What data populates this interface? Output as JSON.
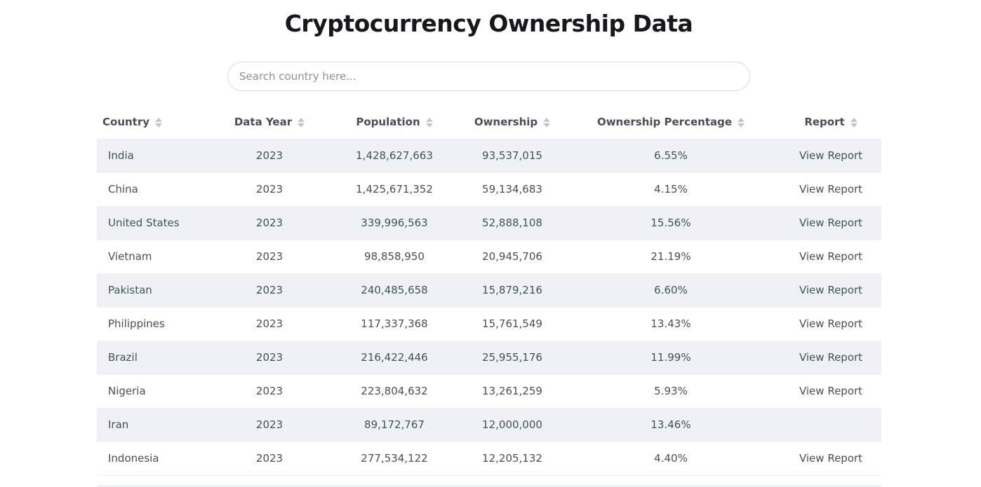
{
  "page": {
    "title": "Cryptocurrency Ownership Data"
  },
  "search": {
    "placeholder": "Search country here...",
    "value": ""
  },
  "table": {
    "headers": {
      "country": "Country",
      "year": "Data Year",
      "population": "Population",
      "ownership": "Ownership",
      "percentage": "Ownership Percentage",
      "report": "Report"
    },
    "rows": [
      {
        "country": "India",
        "year": "2023",
        "population": "1,428,627,663",
        "ownership": "93,537,015",
        "percentage": "6.55%",
        "report": "View Report"
      },
      {
        "country": "China",
        "year": "2023",
        "population": "1,425,671,352",
        "ownership": "59,134,683",
        "percentage": "4.15%",
        "report": "View Report"
      },
      {
        "country": "United States",
        "year": "2023",
        "population": "339,996,563",
        "ownership": "52,888,108",
        "percentage": "15.56%",
        "report": "View Report"
      },
      {
        "country": "Vietnam",
        "year": "2023",
        "population": "98,858,950",
        "ownership": "20,945,706",
        "percentage": "21.19%",
        "report": "View Report"
      },
      {
        "country": "Pakistan",
        "year": "2023",
        "population": "240,485,658",
        "ownership": "15,879,216",
        "percentage": "6.60%",
        "report": "View Report"
      },
      {
        "country": "Philippines",
        "year": "2023",
        "population": "117,337,368",
        "ownership": "15,761,549",
        "percentage": "13.43%",
        "report": "View Report"
      },
      {
        "country": "Brazil",
        "year": "2023",
        "population": "216,422,446",
        "ownership": "25,955,176",
        "percentage": "11.99%",
        "report": "View Report"
      },
      {
        "country": "Nigeria",
        "year": "2023",
        "population": "223,804,632",
        "ownership": "13,261,259",
        "percentage": "5.93%",
        "report": "View Report"
      },
      {
        "country": "Iran",
        "year": "2023",
        "population": "89,172,767",
        "ownership": "12,000,000",
        "percentage": "13.46%",
        "report": ""
      },
      {
        "country": "Indonesia",
        "year": "2023",
        "population": "277,534,122",
        "ownership": "12,205,132",
        "percentage": "4.40%",
        "report": "View Report"
      }
    ]
  },
  "icons": {
    "sort": "sort-icon"
  },
  "colors": {
    "title": "#16181d",
    "text": "#4a4f57",
    "row_stripe": "#eef1f6",
    "sort_icon": "#c2c6cc"
  }
}
